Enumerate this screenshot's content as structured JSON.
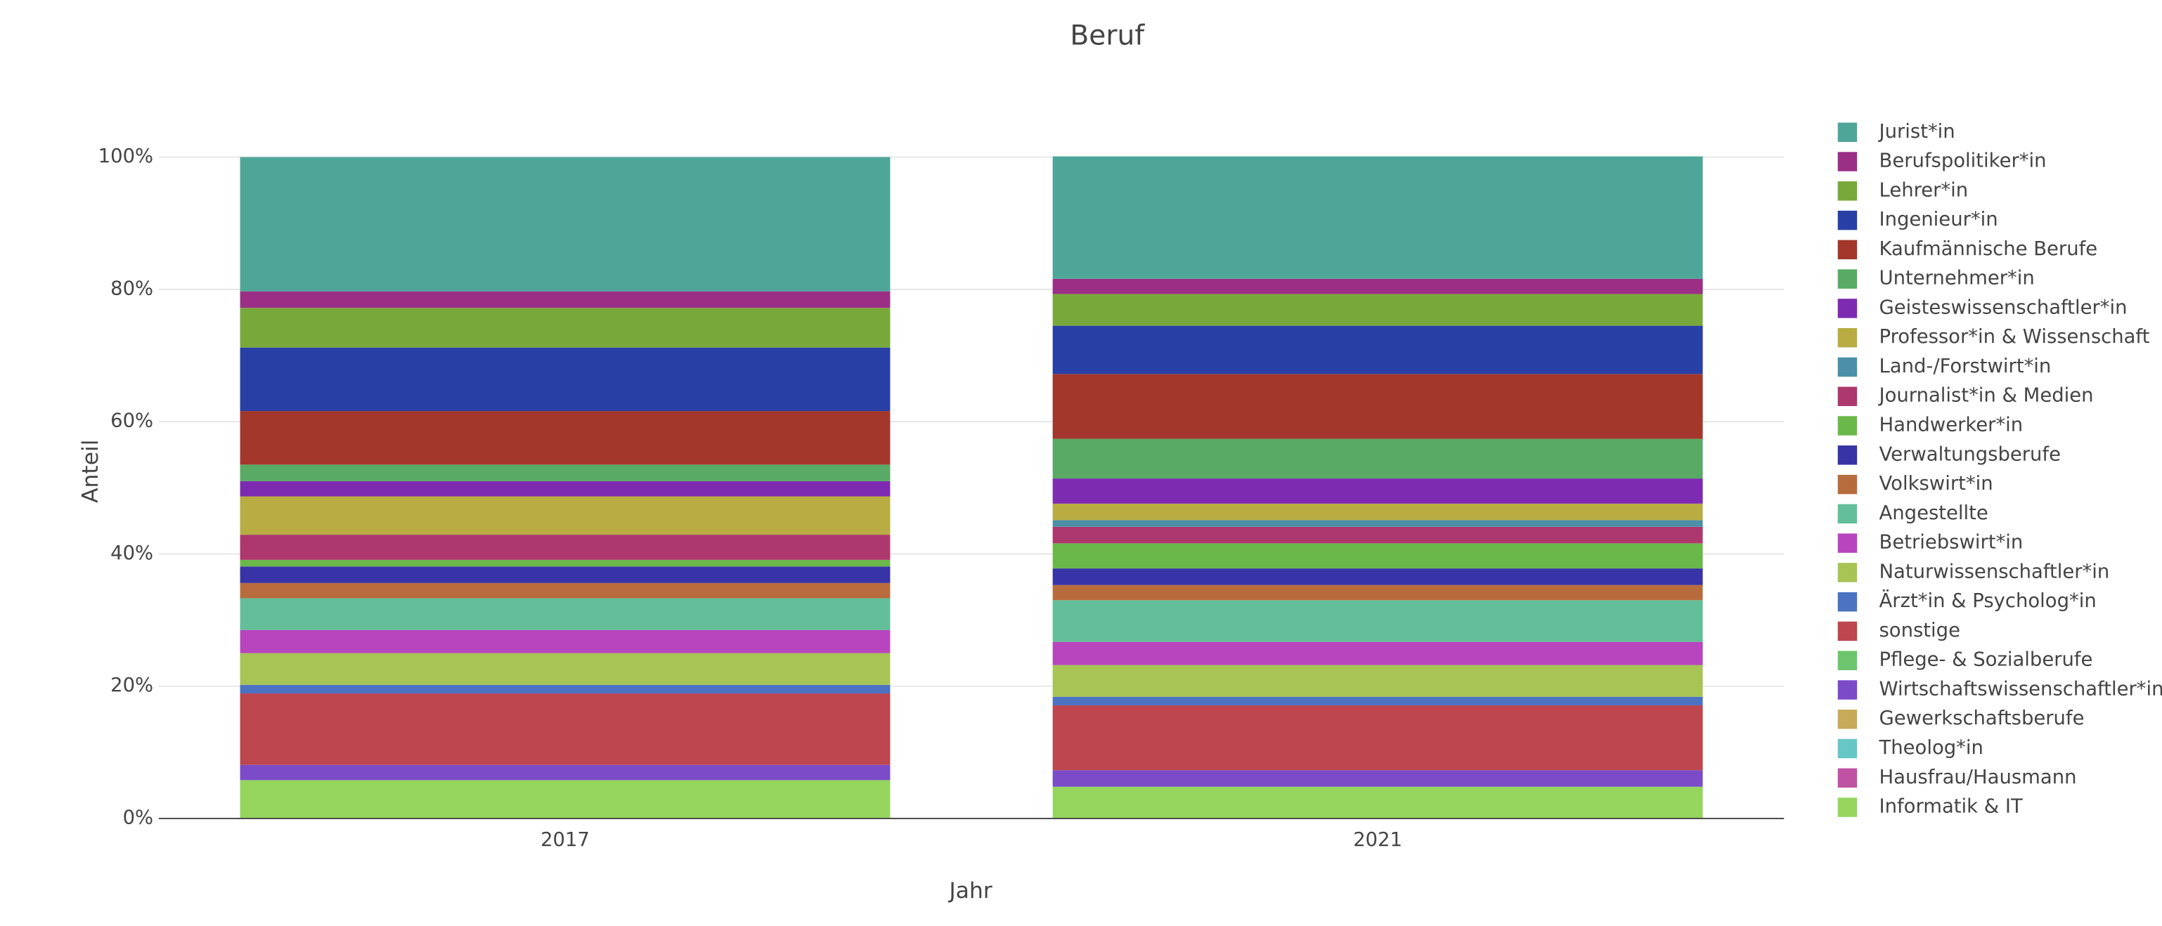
{
  "chart_data": {
    "type": "stacked_bar",
    "title": "Beruf",
    "x_label": "Jahr",
    "y_label": "Anteil",
    "categories": [
      "2017",
      "2021"
    ],
    "ylim": [
      0,
      100
    ],
    "yticks": [
      {
        "value": 0,
        "label": "0%"
      },
      {
        "value": 20,
        "label": "20%"
      },
      {
        "value": 40,
        "label": "40%"
      },
      {
        "value": 60,
        "label": "60%"
      },
      {
        "value": 80,
        "label": "80%"
      },
      {
        "value": 100,
        "label": "100%"
      }
    ],
    "grid": true,
    "legend": "right",
    "series": [
      {
        "name": "Informatik & IT",
        "color": "#95d55e",
        "values": [
          5.8,
          4.8
        ]
      },
      {
        "name": "Hausfrau/Hausmann",
        "color": "#c052a3",
        "values": [
          0,
          0
        ]
      },
      {
        "name": "Theolog*in",
        "color": "#67c6c6",
        "values": [
          0,
          0
        ]
      },
      {
        "name": "Gewerkschaftsberufe",
        "color": "#c7aa5a",
        "values": [
          0,
          0
        ]
      },
      {
        "name": "Wirtschaftswissenschaftler*in",
        "color": "#7b4bc8",
        "values": [
          2.3,
          2.5
        ]
      },
      {
        "name": "Pflege- & Sozialberufe",
        "color": "#6cc56c",
        "values": [
          0,
          0
        ]
      },
      {
        "name": "sonstige",
        "color": "#bd464f",
        "values": [
          10.8,
          9.8
        ]
      },
      {
        "name": "Ärzt*in & Psycholog*in",
        "color": "#4b73c2",
        "values": [
          1.3,
          1.3
        ]
      },
      {
        "name": "Naturwissenschaftler*in",
        "color": "#a7c455",
        "values": [
          4.8,
          4.8
        ]
      },
      {
        "name": "Betriebswirt*in",
        "color": "#b845be",
        "values": [
          3.5,
          3.5
        ]
      },
      {
        "name": "Angestellte",
        "color": "#62bf99",
        "values": [
          4.8,
          6.3
        ]
      },
      {
        "name": "Volkswirt*in",
        "color": "#b86c3d",
        "values": [
          2.3,
          2.3
        ]
      },
      {
        "name": "Verwaltungsberufe",
        "color": "#3833a6",
        "values": [
          2.5,
          2.5
        ]
      },
      {
        "name": "Handwerker*in",
        "color": "#6bb84a",
        "values": [
          1.0,
          3.8
        ]
      },
      {
        "name": "Journalist*in & Medien",
        "color": "#ad386d",
        "values": [
          3.8,
          2.5
        ]
      },
      {
        "name": "Land-/Forstwirt*in",
        "color": "#4b8fa8",
        "values": [
          0,
          1.0
        ]
      },
      {
        "name": "Professor*in & Wissenschaft",
        "color": "#b8ac42",
        "values": [
          5.8,
          2.5
        ]
      },
      {
        "name": "Geisteswissenschaftler*in",
        "color": "#7d2bb0",
        "values": [
          2.3,
          3.8
        ]
      },
      {
        "name": "Unternehmer*in",
        "color": "#58aa65",
        "values": [
          2.5,
          6.0
        ]
      },
      {
        "name": "Kaufmännische Berufe",
        "color": "#a3372c",
        "values": [
          8.1,
          9.8
        ]
      },
      {
        "name": "Ingenieur*in",
        "color": "#283fa6",
        "values": [
          9.6,
          7.3
        ]
      },
      {
        "name": "Lehrer*in",
        "color": "#78a83a",
        "values": [
          6.0,
          4.8
        ]
      },
      {
        "name": "Berufspolitiker*in",
        "color": "#9b2f86",
        "values": [
          2.5,
          2.3
        ]
      },
      {
        "name": "Jurist*in",
        "color": "#4ea699",
        "values": [
          20.3,
          18.5
        ]
      }
    ]
  }
}
